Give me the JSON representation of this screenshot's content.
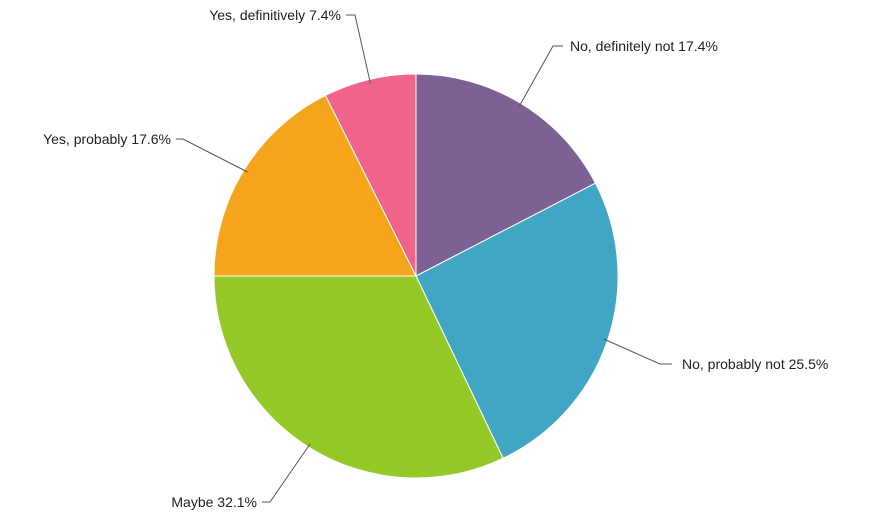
{
  "chart_data": {
    "type": "pie",
    "title": "",
    "start_angle_deg": 0,
    "direction": "clockwise",
    "slices": [
      {
        "label": "No, definitely not 17.4%",
        "category": "No, definitely not",
        "value": 17.4,
        "color": "#7b6194"
      },
      {
        "label": "No, probably not 25.5%",
        "category": "No, probably not",
        "value": 25.5,
        "color": "#41a5c4"
      },
      {
        "label": "Maybe 32.1%",
        "category": "Maybe",
        "value": 32.1,
        "color": "#95c928"
      },
      {
        "label": "Yes, probably 17.6%",
        "category": "Yes, probably",
        "value": 17.6,
        "color": "#f5a51b"
      },
      {
        "label": "Yes, definitively 7.4%",
        "category": "Yes, definitively",
        "value": 7.4,
        "color": "#f0638a"
      }
    ]
  }
}
